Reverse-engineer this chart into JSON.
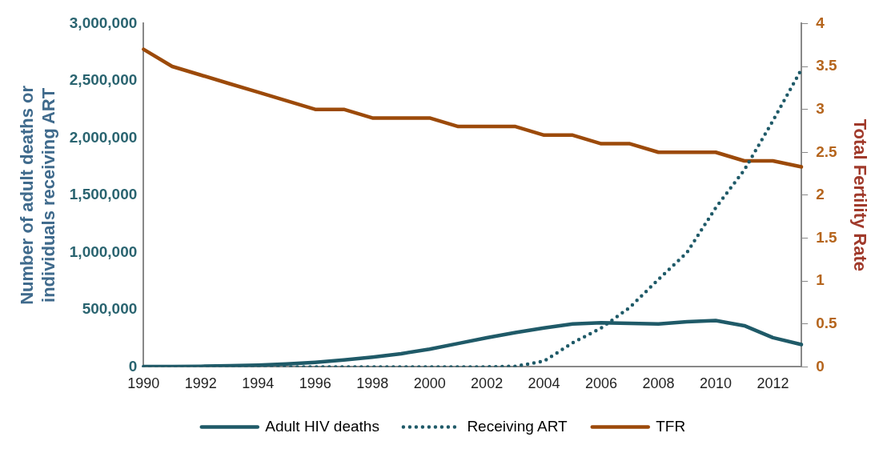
{
  "chart_data": {
    "type": "line",
    "categories": [
      "1990",
      null,
      "1992",
      null,
      "1994",
      null,
      "1996",
      null,
      "1998",
      null,
      "2000",
      null,
      "2002",
      null,
      "2004",
      null,
      "2006",
      null,
      "2008",
      null,
      "2010",
      null,
      "2012",
      null
    ],
    "ylabel": "Number of adult deaths or individuals receiving ART",
    "y2label": "Total Fertility Rate",
    "ylim": [
      0,
      3000000
    ],
    "yticks": [
      0,
      {
        "value": 500000,
        "label": "500,000"
      },
      {
        "value": 1000000,
        "label": "1,000,000"
      },
      {
        "value": 1500000,
        "label": "1,500,000"
      },
      {
        "value": 2000000,
        "label": "2,000,000"
      },
      {
        "value": 2500000,
        "label": "2,500,000"
      },
      {
        "value": 3000000,
        "label": "3,000,000"
      }
    ],
    "y2lim": [
      0,
      4
    ],
    "y2ticks": [
      0,
      0.5,
      1,
      1.5,
      2,
      2.5,
      3,
      3.5,
      4
    ],
    "grid": false,
    "legend": "bottom",
    "marker": "none",
    "series": [
      {
        "name": "Adult HIV deaths",
        "color": "#1f5a68",
        "line_style": "solid",
        "values": [
          2000,
          3000,
          5000,
          10000,
          15000,
          25000,
          40000,
          60000,
          85000,
          115000,
          155000,
          205000,
          255000,
          300000,
          340000,
          375000,
          385000,
          380000,
          375000,
          395000,
          405000,
          360000,
          255000,
          195000
        ]
      },
      {
        "name": "Receiving ART",
        "color": "#1f5a68",
        "line_style": "dotted",
        "values": [
          0,
          0,
          0,
          0,
          0,
          0,
          0,
          0,
          0,
          0,
          0,
          0,
          0,
          5000,
          50000,
          210000,
          340000,
          520000,
          765000,
          1000000,
          1390000,
          1720000,
          2150000,
          2600000
        ]
      },
      {
        "name": "TFR",
        "color": "#9c4a0a",
        "line_style": "solid",
        "axis": "y2",
        "values": [
          3.7,
          3.5,
          3.4,
          3.3,
          3.2,
          3.1,
          3.0,
          3.0,
          2.9,
          2.9,
          2.9,
          2.8,
          2.8,
          2.8,
          2.7,
          2.7,
          2.6,
          2.6,
          2.5,
          2.5,
          2.5,
          2.4,
          2.4,
          2.33
        ]
      }
    ]
  }
}
